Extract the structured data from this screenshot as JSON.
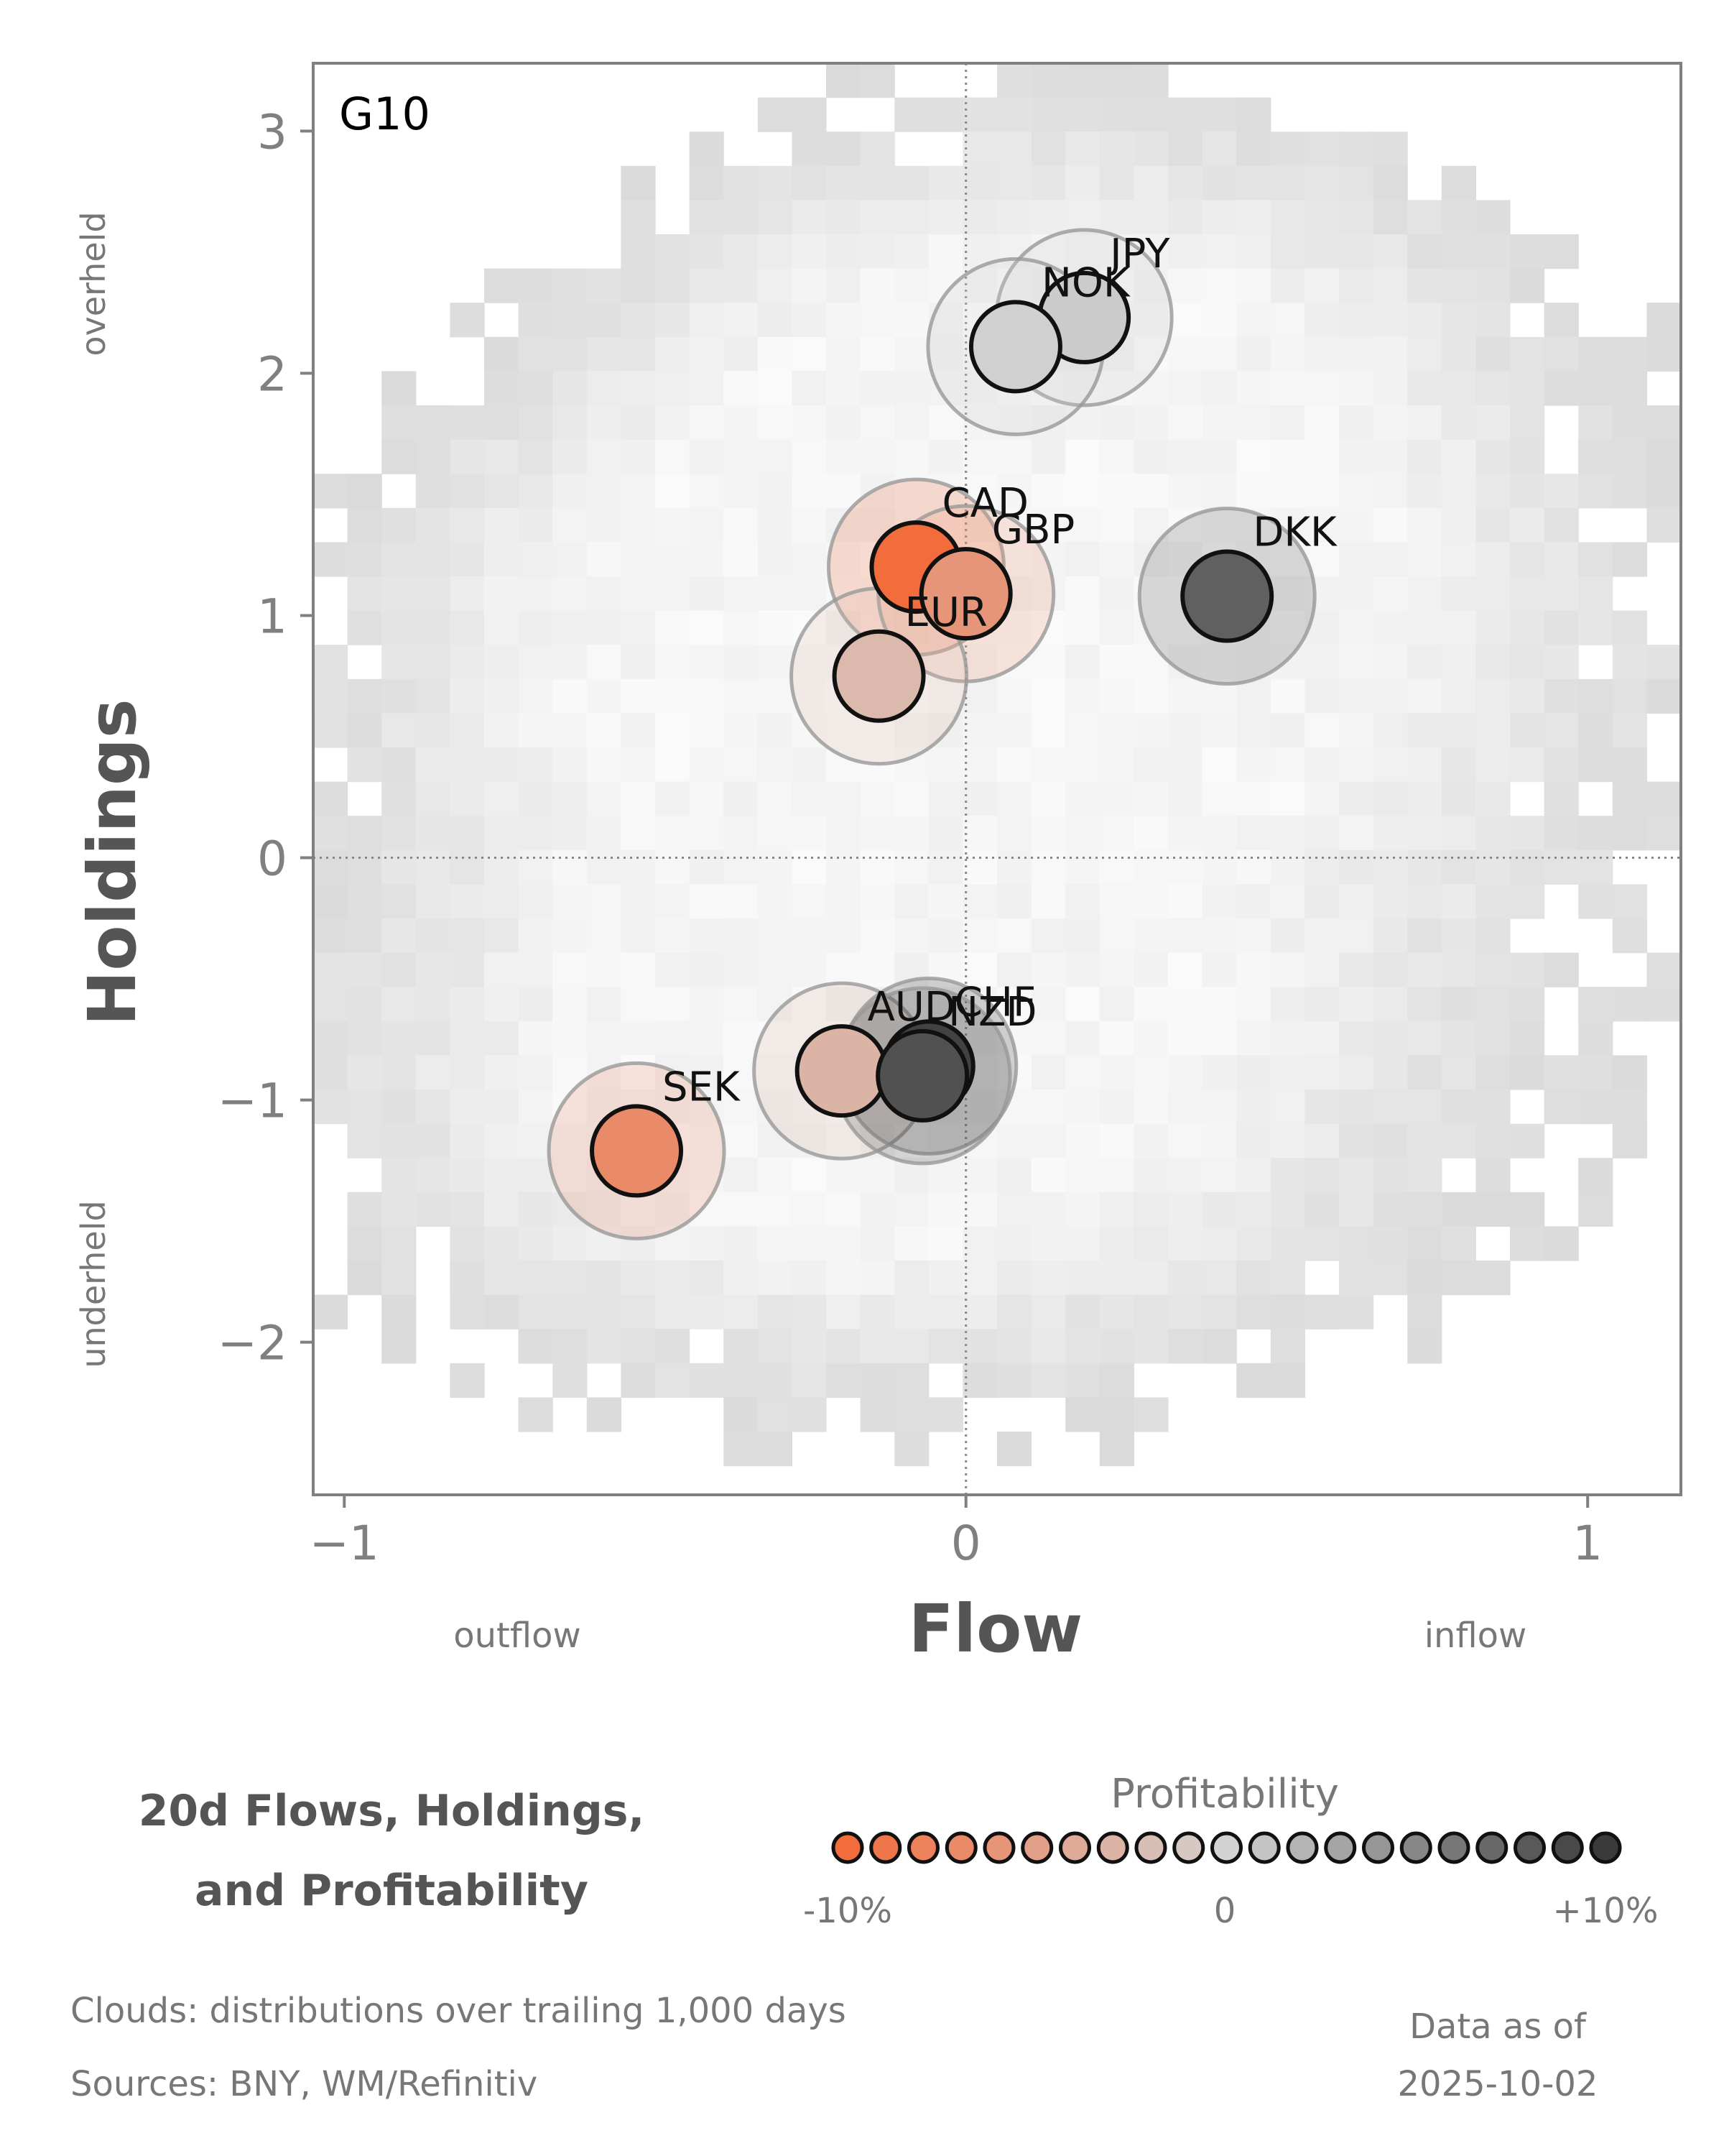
{
  "chart_data": {
    "type": "scatter",
    "panel_label": "G10",
    "xlabel": "Flow",
    "ylabel": "Holdings",
    "x_left_annotation": "outflow",
    "x_right_annotation": "inflow",
    "y_top_annotation": "overheld",
    "y_bottom_annotation": "underheld",
    "xlim": [
      -1.05,
      1.15
    ],
    "ylim": [
      -2.63,
      3.28
    ],
    "xticks": [
      -1,
      0,
      1
    ],
    "xtick_labels": [
      "−1",
      "0",
      "1"
    ],
    "yticks": [
      3,
      2,
      1,
      0,
      -1,
      -2
    ],
    "ytick_labels": [
      "3",
      "2",
      "1",
      "0",
      "−1",
      "−2"
    ],
    "reference_lines": {
      "x": 0,
      "y": 0
    },
    "background": "2D histogram clouds (grey)",
    "points": [
      {
        "label": "JPY",
        "x": 0.19,
        "y": 2.23,
        "profitability": 0.5
      },
      {
        "label": "NOK",
        "x": 0.08,
        "y": 2.11,
        "profitability": 0.2
      },
      {
        "label": "CAD",
        "x": -0.08,
        "y": 1.2,
        "profitability": -10
      },
      {
        "label": "GBP",
        "x": 0.0,
        "y": 1.09,
        "profitability": -6
      },
      {
        "label": "DKK",
        "x": 0.42,
        "y": 1.08,
        "profitability": 7.5
      },
      {
        "label": "EUR",
        "x": -0.14,
        "y": 0.75,
        "profitability": -2.5
      },
      {
        "label": "AUD",
        "x": -0.2,
        "y": -0.88,
        "profitability": -3
      },
      {
        "label": "CHF",
        "x": -0.06,
        "y": -0.86,
        "profitability": 9.5
      },
      {
        "label": "NZD",
        "x": -0.07,
        "y": -0.9,
        "profitability": 8.5
      },
      {
        "label": "SEK",
        "x": -0.53,
        "y": -1.21,
        "profitability": -7
      }
    ],
    "colorbar": {
      "title": "Profitability",
      "min_label": "-10%",
      "mid_label": "0",
      "max_label": "+10%",
      "min": -10,
      "max": 10,
      "low_color": "#f26c3c",
      "mid_color": "#d3d3d3",
      "high_color": "#3a3a3a"
    }
  },
  "footer": {
    "title_line1": "20d Flows, Holdings,",
    "title_line2": "and Profitability",
    "clouds_note": "Clouds:  distributions over trailing 1,000 days",
    "sources_note": "Sources:  BNY, WM/Refinitiv",
    "data_as_of_label": "Data as of",
    "data_as_of_date": "2025-10-02"
  }
}
